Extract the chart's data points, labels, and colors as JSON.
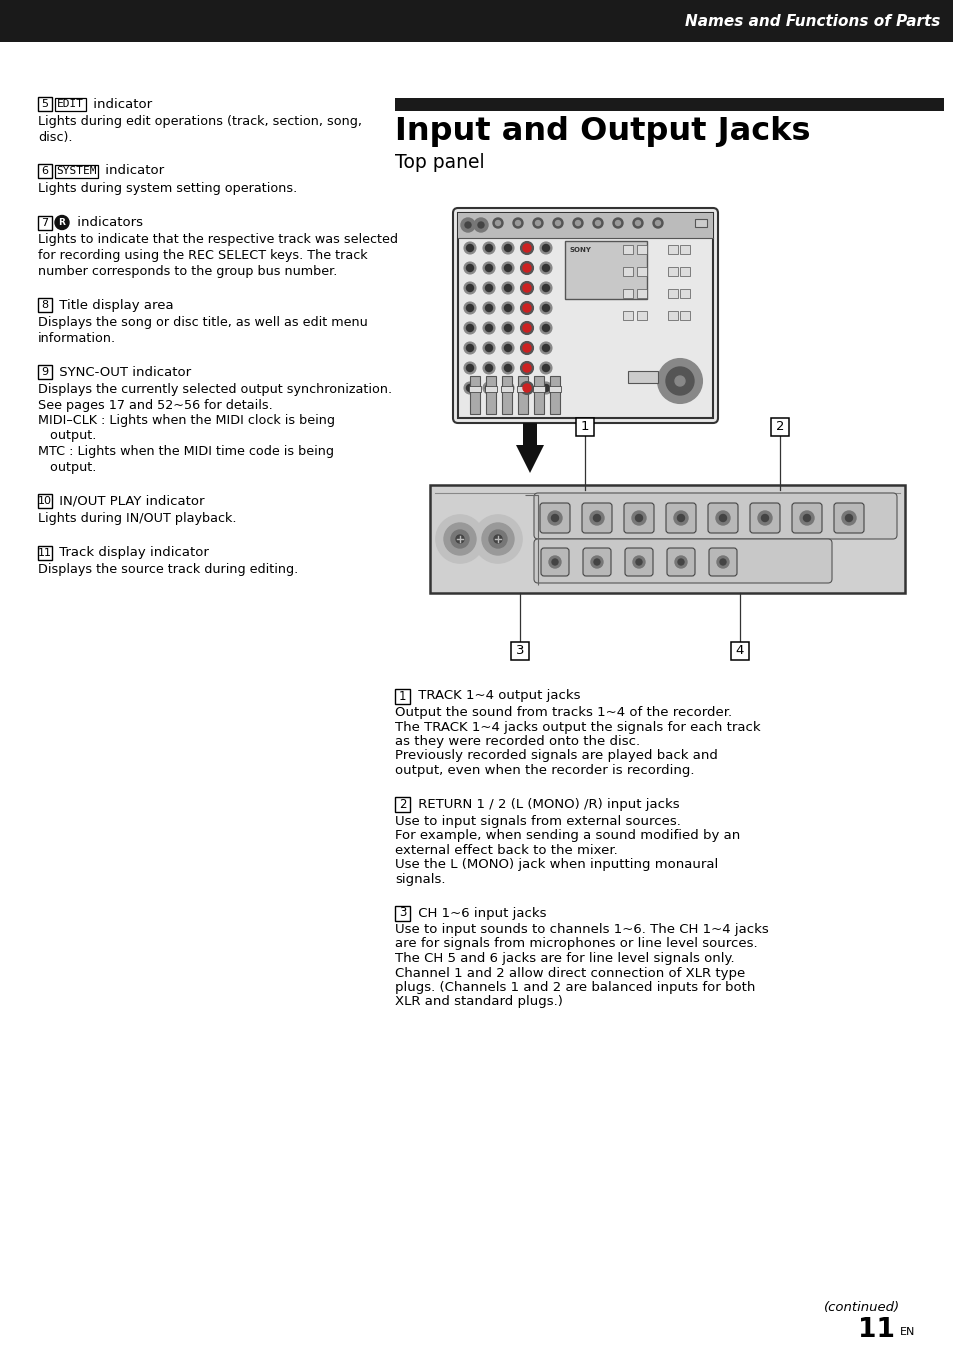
{
  "page_bg": "#ffffff",
  "header_bg": "#1a1a1a",
  "header_text": "Names and Functions of Parts",
  "header_text_color": "#ffffff",
  "section_title_bar_color": "#1a1a1a",
  "section_title": "Input and Output Jacks",
  "section_subtitle": "Top panel",
  "left_column": [
    {
      "number": "5",
      "label_boxed": "EDIT",
      "label_suffix": " indicator",
      "body": "Lights during edit operations (track, section, song,\ndisc)."
    },
    {
      "number": "6",
      "label_boxed": "SYSTEM",
      "label_suffix": " indicator",
      "body": "Lights during system setting operations."
    },
    {
      "number": "7",
      "label_circle": true,
      "label_suffix": " indicators",
      "body": "Lights to indicate that the respective track was selected\nfor recording using the REC SELECT keys. The track\nnumber corresponds to the group bus number."
    },
    {
      "number": "8",
      "label_boxed": null,
      "label_suffix": " Title display area",
      "body": "Displays the song or disc title, as well as edit menu\ninformation."
    },
    {
      "number": "9",
      "label_boxed": null,
      "label_suffix": " SYNC-OUT indicator",
      "body": "Displays the currently selected output synchronization.\nSee pages 17 and 52~56 for details.\nMIDI–CLK : Lights when the MIDI clock is being\n   output.\nMTC : Lights when the MIDI time code is being\n   output."
    },
    {
      "number": "10",
      "label_boxed": null,
      "label_suffix": " IN/OUT PLAY indicator",
      "body": "Lights during IN/OUT playback."
    },
    {
      "number": "11",
      "label_boxed": null,
      "label_suffix": " Track display indicator",
      "body": "Displays the source track during editing."
    }
  ],
  "right_descriptions": [
    {
      "number": "1",
      "label": " TRACK 1~4 output jacks",
      "body": "Output the sound from tracks 1~4 of the recorder.\nThe TRACK 1~4 jacks output the signals for each track\nas they were recorded onto the disc.\nPreviously recorded signals are played back and\noutput, even when the recorder is recording."
    },
    {
      "number": "2",
      "label": " RETURN 1 / 2 (L (MONO) /R) input jacks",
      "body": "Use to input signals from external sources.\nFor example, when sending a sound modified by an\nexternal effect back to the mixer.\nUse the L (MONO) jack when inputting monaural\nsignals."
    },
    {
      "number": "3",
      "label": " CH 1~6 input jacks",
      "body": "Use to input sounds to channels 1~6. The CH 1~4 jacks\nare for signals from microphones or line level sources.\nThe CH 5 and 6 jacks are for line level signals only.\nChannel 1 and 2 allow direct connection of XLR type\nplugs. (Channels 1 and 2 are balanced inputs for both\nXLR and standard plugs.)"
    }
  ],
  "footer_text": "(continued)",
  "page_number": "11",
  "page_number_suffix": "EN"
}
